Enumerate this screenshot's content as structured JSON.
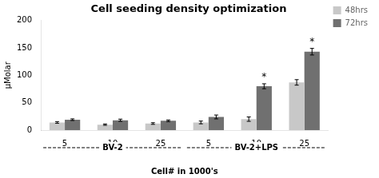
{
  "chart_data": {
    "type": "bar",
    "title": "Cell seeding density optimization",
    "ylabel": "µMolar",
    "xlabel": "Cell# in 1000's",
    "categories": [
      "5",
      "10",
      "25",
      "5",
      "10",
      "25"
    ],
    "series": [
      {
        "name": "48hrs",
        "color": "#c8c8c8",
        "values": [
          14,
          10,
          12,
          14,
          20,
          87
        ],
        "errors": [
          1.5,
          1.2,
          1.5,
          2.5,
          4.0,
          5.0
        ]
      },
      {
        "name": "72hrs",
        "color": "#707070",
        "values": [
          19,
          18,
          17,
          24,
          80,
          143
        ],
        "errors": [
          1.5,
          2.0,
          1.5,
          3.5,
          4.5,
          6.0
        ]
      }
    ],
    "ylim": [
      0,
      200
    ],
    "yticks": [
      0,
      50,
      100,
      150,
      200
    ],
    "grid": false,
    "legend": "right",
    "annotations": [
      {
        "text": "*",
        "series": "72hrs",
        "index": 4
      },
      {
        "text": "*",
        "series": "72hrs",
        "index": 5
      }
    ],
    "sections": [
      {
        "label": "BV-2",
        "start": 0,
        "end": 2
      },
      {
        "label": "BV-2+LPS",
        "start": 3,
        "end": 5
      }
    ]
  }
}
